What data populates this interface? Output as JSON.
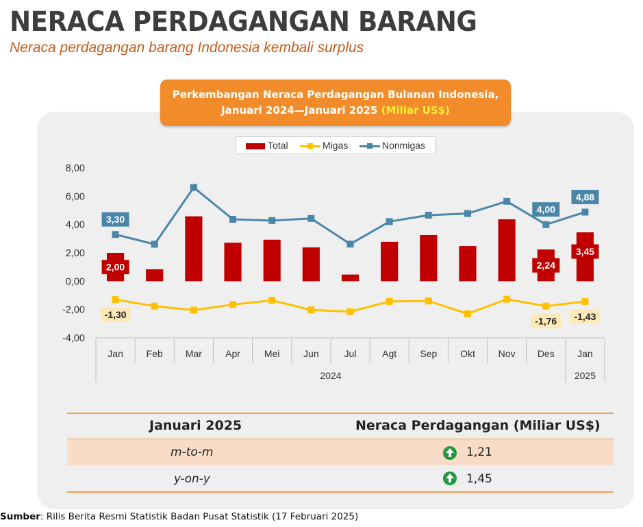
{
  "header": {
    "title": "NERACA PERDAGANGAN BARANG",
    "subtitle": "Neraca perdagangan barang Indonesia kembali surplus"
  },
  "banner": {
    "line1": "Perkembangan Neraca Perdagangan Bulanan Indonesia,",
    "line2": "Januari 2024—Januari 2025",
    "unit": "(Miliar US$)"
  },
  "colors": {
    "total": "#c00000",
    "migas": "#ffc000",
    "nonmigas": "#4a86a8",
    "banner": "#f28c2a",
    "title": "#3d3d3d",
    "subtitle": "#c75b1c"
  },
  "chart_data": {
    "type": "bar",
    "title": "Perkembangan Neraca Perdagangan Bulanan Indonesia, Januari 2024—Januari 2025 (Miliar US$)",
    "categories": [
      "Jan",
      "Feb",
      "Mar",
      "Apr",
      "Mei",
      "Jun",
      "Jul",
      "Agt",
      "Sep",
      "Okt",
      "Nov",
      "Des",
      "Jan"
    ],
    "year_groups": [
      {
        "label": "2024",
        "from": 0,
        "to": 11
      },
      {
        "label": "2025",
        "from": 12,
        "to": 12
      }
    ],
    "ylim": [
      -4,
      8
    ],
    "yticks": [
      "-4,00",
      "-2,00",
      "0,00",
      "2,00",
      "4,00",
      "6,00",
      "8,00"
    ],
    "ytick_values": [
      -4,
      -2,
      0,
      2,
      4,
      6,
      8
    ],
    "grid": false,
    "legend": "top",
    "series": [
      {
        "name": "Total",
        "type": "bar",
        "values": [
          2.0,
          0.84,
          4.58,
          2.72,
          2.93,
          2.39,
          0.47,
          2.78,
          3.26,
          2.48,
          4.37,
          2.24,
          3.45
        ]
      },
      {
        "name": "Migas",
        "type": "line",
        "values": [
          -1.3,
          -1.76,
          -2.04,
          -1.65,
          -1.35,
          -2.03,
          -2.15,
          -1.43,
          -1.4,
          -2.3,
          -1.27,
          -1.76,
          -1.43
        ]
      },
      {
        "name": "Nonmigas",
        "type": "line",
        "values": [
          3.3,
          2.61,
          6.62,
          4.37,
          4.28,
          4.43,
          2.62,
          4.21,
          4.66,
          4.78,
          5.64,
          4.0,
          4.88
        ]
      }
    ],
    "annotations": [
      {
        "series": "Nonmigas",
        "index": 0,
        "text": "3,30"
      },
      {
        "series": "Nonmigas",
        "index": 11,
        "text": "4,00"
      },
      {
        "series": "Nonmigas",
        "index": 12,
        "text": "4,88"
      },
      {
        "series": "Total",
        "index": 0,
        "text": "2,00"
      },
      {
        "series": "Total",
        "index": 11,
        "text": "2,24"
      },
      {
        "series": "Total",
        "index": 12,
        "text": "3,45"
      },
      {
        "series": "Migas",
        "index": 0,
        "text": "-1,30"
      },
      {
        "series": "Migas",
        "index": 11,
        "text": "-1,76"
      },
      {
        "series": "Migas",
        "index": 12,
        "text": "-1,43"
      }
    ]
  },
  "table": {
    "col1_header": "Januari 2025",
    "col2_header": "Neraca Perdagangan (Miliar US$)",
    "rows": [
      {
        "label": "m-to-m",
        "value": "1,21",
        "trend_icon": "arrow-up-icon"
      },
      {
        "label": "y-on-y",
        "value": "1,45",
        "trend_icon": "arrow-up-icon"
      }
    ]
  },
  "footer": {
    "source_label": "Sumber",
    "source_text": ": Rilis Berita Resmi Statistik Badan Pusat Statistik (17 Februari 2025)"
  }
}
